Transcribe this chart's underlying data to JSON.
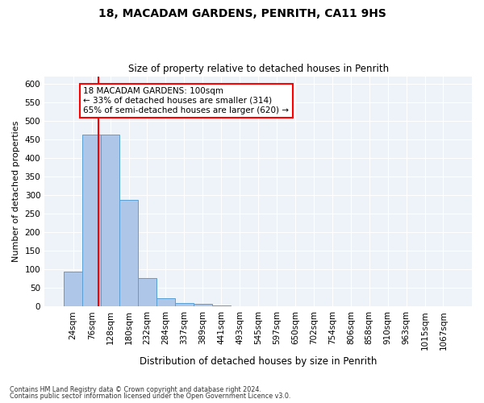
{
  "title1": "18, MACADAM GARDENS, PENRITH, CA11 9HS",
  "title2": "Size of property relative to detached houses in Penrith",
  "xlabel": "Distribution of detached houses by size in Penrith",
  "ylabel": "Number of detached properties",
  "bin_labels": [
    "24sqm",
    "76sqm",
    "128sqm",
    "180sqm",
    "232sqm",
    "284sqm",
    "337sqm",
    "389sqm",
    "441sqm",
    "493sqm",
    "545sqm",
    "597sqm",
    "650sqm",
    "702sqm",
    "754sqm",
    "806sqm",
    "858sqm",
    "910sqm",
    "963sqm",
    "1015sqm",
    "1067sqm"
  ],
  "bin_values": [
    93,
    462,
    462,
    287,
    77,
    22,
    9,
    6,
    3,
    1,
    0,
    0,
    0,
    0,
    0,
    0,
    0,
    0,
    0,
    0,
    0
  ],
  "bar_color": "#aec6e8",
  "bar_edge_color": "#5a9fd4",
  "red_line_x": 1.35,
  "annotation_text": "18 MACADAM GARDENS: 100sqm\n← 33% of detached houses are smaller (314)\n65% of semi-detached houses are larger (620) →",
  "annotation_box_color": "white",
  "annotation_box_edge_color": "red",
  "footer1": "Contains HM Land Registry data © Crown copyright and database right 2024.",
  "footer2": "Contains public sector information licensed under the Open Government Licence v3.0.",
  "ylim": [
    0,
    620
  ],
  "yticks": [
    0,
    50,
    100,
    150,
    200,
    250,
    300,
    350,
    400,
    450,
    500,
    550,
    600
  ],
  "background_color": "#eef2f9"
}
